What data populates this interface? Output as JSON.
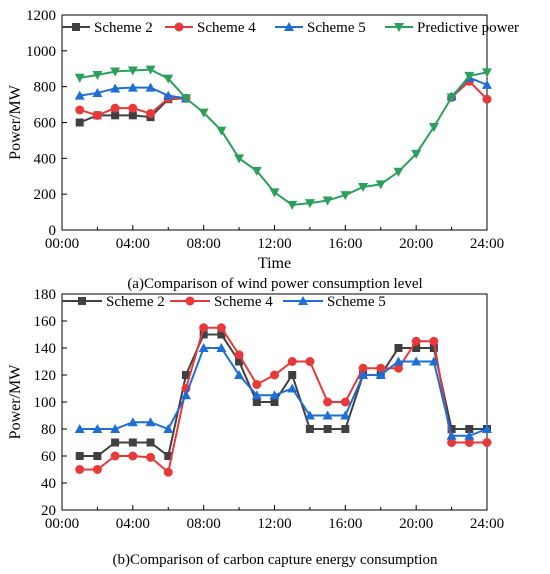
{
  "chart_data": [
    {
      "type": "line",
      "caption": "(a)Comparison of wind power consumption level",
      "xlabel": "Time",
      "ylabel": "Power/MW",
      "xticks": [
        "00:00",
        "04:00",
        "08:00",
        "12:00",
        "16:00",
        "20:00",
        "24:00"
      ],
      "yticks": [
        "0",
        "200",
        "400",
        "600",
        "800",
        "1000",
        "1200"
      ],
      "xlim": [
        0,
        24
      ],
      "ylim": [
        0,
        1200
      ],
      "legend_position": "top",
      "x": [
        1,
        2,
        3,
        4,
        5,
        6,
        7,
        8,
        9,
        10,
        11,
        12,
        13,
        14,
        15,
        16,
        17,
        18,
        19,
        20,
        21,
        22,
        23,
        24
      ],
      "series": [
        {
          "name": "Scheme 2",
          "color": "#404040",
          "marker": "square",
          "x": [
            1,
            2,
            3,
            4,
            5,
            6,
            7
          ],
          "values": [
            600,
            640,
            640,
            640,
            630,
            730,
            735
          ]
        },
        {
          "name": "Scheme 4",
          "color": "#e8393a",
          "marker": "circle",
          "x": [
            1,
            2,
            3,
            4,
            5,
            6,
            7,
            22,
            23,
            24
          ],
          "values": [
            670,
            640,
            680,
            680,
            650,
            735,
            735,
            740,
            830,
            730
          ]
        },
        {
          "name": "Scheme 5",
          "color": "#1f6ed4",
          "marker": "triangle-up",
          "x": [
            1,
            2,
            3,
            4,
            5,
            6,
            7,
            22,
            23,
            24
          ],
          "values": [
            750,
            765,
            790,
            795,
            795,
            750,
            735,
            745,
            850,
            810
          ]
        },
        {
          "name": "Predictive power",
          "color": "#2ca05a",
          "marker": "triangle-down",
          "x": [
            1,
            2,
            3,
            4,
            5,
            6,
            7,
            8,
            9,
            10,
            11,
            12,
            13,
            14,
            15,
            16,
            17,
            18,
            19,
            20,
            21,
            22,
            23,
            24
          ],
          "values": [
            850,
            865,
            885,
            890,
            895,
            845,
            735,
            655,
            555,
            400,
            330,
            210,
            140,
            150,
            165,
            195,
            240,
            255,
            325,
            425,
            575,
            740,
            860,
            880
          ]
        }
      ]
    },
    {
      "type": "line",
      "caption": "(b)Comparison of carbon capture energy consumption",
      "xlabel": "",
      "ylabel": "Power/MW",
      "xticks": [
        "00:00",
        "04:00",
        "08:00",
        "12:00",
        "16:00",
        "20:00",
        "24:00"
      ],
      "yticks": [
        "20",
        "40",
        "60",
        "80",
        "100",
        "120",
        "140",
        "160",
        "180"
      ],
      "xlim": [
        0,
        24
      ],
      "ylim": [
        20,
        180
      ],
      "legend_position": "top",
      "series": [
        {
          "name": "Scheme 2",
          "color": "#404040",
          "marker": "square",
          "x": [
            1,
            2,
            3,
            4,
            5,
            6,
            7,
            8,
            9,
            10,
            11,
            12,
            13,
            14,
            15,
            16,
            17,
            18,
            19,
            20,
            21,
            22,
            23,
            24
          ],
          "values": [
            60,
            60,
            70,
            70,
            70,
            60,
            120,
            150,
            150,
            130,
            100,
            100,
            120,
            80,
            80,
            80,
            120,
            120,
            140,
            140,
            140,
            80,
            80,
            80
          ]
        },
        {
          "name": "Scheme 4",
          "color": "#e8393a",
          "marker": "circle",
          "x": [
            1,
            2,
            3,
            4,
            5,
            6,
            7,
            8,
            9,
            10,
            11,
            12,
            13,
            14,
            15,
            16,
            17,
            18,
            19,
            20,
            21,
            22,
            23,
            24
          ],
          "values": [
            50,
            50,
            60,
            60,
            59,
            48,
            110,
            155,
            155,
            135,
            113,
            120,
            130,
            130,
            100,
            100,
            125,
            125,
            125,
            145,
            145,
            70,
            70,
            70
          ]
        },
        {
          "name": "Scheme 5",
          "color": "#1f6ed4",
          "marker": "triangle-up",
          "x": [
            1,
            2,
            3,
            4,
            5,
            6,
            7,
            8,
            9,
            10,
            11,
            12,
            13,
            14,
            15,
            16,
            17,
            18,
            19,
            20,
            21,
            22,
            23,
            24
          ],
          "values": [
            80,
            80,
            80,
            85,
            85,
            80,
            105,
            140,
            140,
            120,
            105,
            105,
            110,
            90,
            90,
            90,
            120,
            120,
            130,
            130,
            130,
            75,
            75,
            80
          ]
        }
      ]
    }
  ]
}
